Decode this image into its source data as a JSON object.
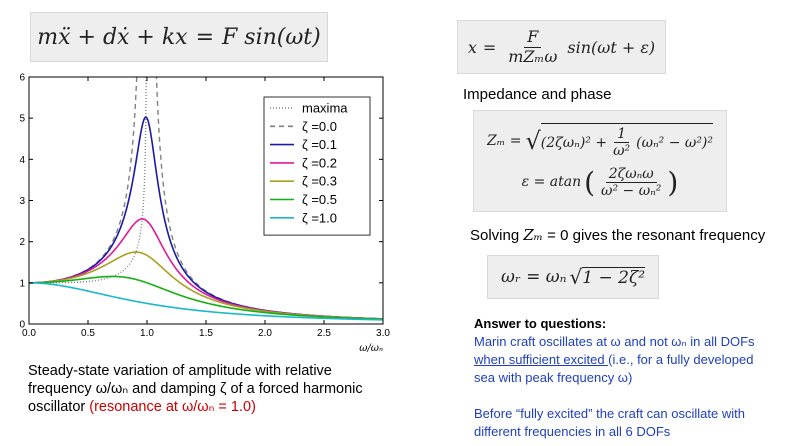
{
  "equations": {
    "motion": {
      "lhs": "mẍ + dẋ + kx",
      "eq": "=",
      "rhs": "F sin(ωt)"
    },
    "solution": {
      "var": "x",
      "eq": "=",
      "num": "F",
      "den": "mZₘω",
      "rest": "sin(ωt + ε)"
    },
    "impedance": {
      "z_lhs": "Zₘ =",
      "z_expr1": "(2ζωₙ)² +",
      "z_num": "1",
      "z_den": "ω²",
      "z_expr2": "(ωₙ² − ω²)²",
      "e_lhs": "ε = atan",
      "e_num": "2ζωₙω",
      "e_den": "ω² − ωₙ²"
    },
    "resonant": {
      "lhs": "ωᵣ = ωₙ",
      "rad": "1 − 2ζ²"
    }
  },
  "labels": {
    "impedance_heading": "Impedance and phase",
    "solving_prefix": "Solving ",
    "solving_var": "Zₘ",
    "solving_suffix": " = 0 gives the resonant frequency"
  },
  "caption": {
    "line1": "Steady-state variation of amplitude with relative",
    "line2_a": "frequency ω/ωₙ  and damping ζ of a forced harmonic",
    "line3_a": "oscillator ",
    "line3_red": "(resonance at ω/ωₙ = 1.0)"
  },
  "answer": {
    "heading": "Answer to questions:",
    "p1_a": "Marin craft oscillates at ω and not ωₙ in all DOFs",
    "p1_b_ul": "when sufficient excited ",
    "p1_b_rest": "(i.e., for a fully developed",
    "p1_c": "sea with peak frequency ω)",
    "p2_a": "Before “fully excited” the craft can oscillate with",
    "p2_b": "different frequencies in all 6 DOFs"
  },
  "colors": {
    "text_red": "#cc0000",
    "text_blue": "#1f3fbf"
  },
  "chart_data": {
    "type": "line",
    "xlabel": "ω/ωₙ",
    "ylabel": "",
    "title": "",
    "xlim": [
      0.0,
      3.0
    ],
    "ylim": [
      0,
      6
    ],
    "xticks": [
      "0.0",
      "0.5",
      "1.0",
      "1.5",
      "2.0",
      "2.5",
      "3.0"
    ],
    "yticks": [
      "0",
      "1",
      "2",
      "3",
      "4",
      "5",
      "6"
    ],
    "grid": false,
    "legend_position": "top-right",
    "series": [
      {
        "name": "maxima",
        "kind": "maxima",
        "color": "#808080",
        "dash": "1,2"
      },
      {
        "name": "ζ =0.0",
        "zeta": 0.0,
        "color": "#808080",
        "dash": "5,4"
      },
      {
        "name": "ζ =0.1",
        "zeta": 0.1,
        "color": "#1a1aa6",
        "dash": ""
      },
      {
        "name": "ζ =0.2",
        "zeta": 0.2,
        "color": "#e0199a",
        "dash": ""
      },
      {
        "name": "ζ =0.3",
        "zeta": 0.3,
        "color": "#a8a020",
        "dash": ""
      },
      {
        "name": "ζ =0.5",
        "zeta": 0.5,
        "color": "#15b015",
        "dash": ""
      },
      {
        "name": "ζ =1.0",
        "zeta": 1.0,
        "color": "#1ab8c8",
        "dash": ""
      }
    ]
  }
}
